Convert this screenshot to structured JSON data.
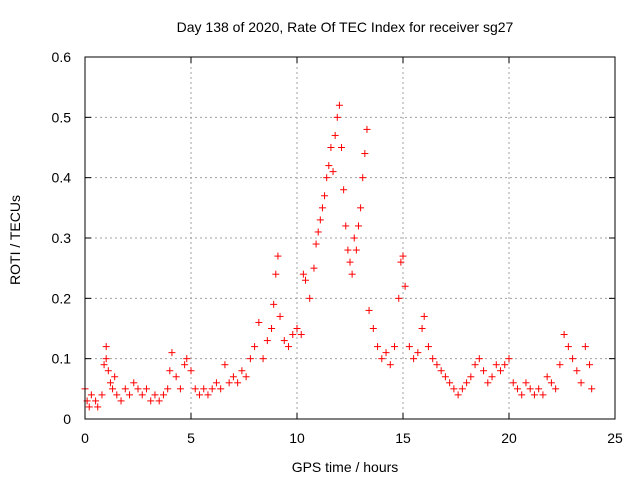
{
  "chart_data": {
    "type": "scatter",
    "title": "Day 138 of 2020, Rate Of TEC Index for receiver sg27",
    "xlabel": "GPS time / hours",
    "ylabel": "ROTI / TECUs",
    "xlim": [
      0,
      25
    ],
    "ylim": [
      0,
      0.6
    ],
    "xticks": [
      "0",
      "5",
      "10",
      "15",
      "20",
      "25"
    ],
    "yticks": [
      "0",
      "0.1",
      "0.2",
      "0.3",
      "0.4",
      "0.5",
      "0.6"
    ],
    "xtick_values": [
      0,
      5,
      10,
      15,
      20,
      25
    ],
    "ytick_values": [
      0,
      0.1,
      0.2,
      0.3,
      0.4,
      0.5,
      0.6
    ],
    "grid": true,
    "marker": "+",
    "color": "#ff0000",
    "series": [
      {
        "name": "ROTI",
        "description_note": "dense red plus markers spanning 0-24 h",
        "points": [
          [
            0.0,
            0.05
          ],
          [
            0.1,
            0.03
          ],
          [
            0.2,
            0.02
          ],
          [
            0.3,
            0.04
          ],
          [
            0.5,
            0.03
          ],
          [
            0.6,
            0.02
          ],
          [
            0.8,
            0.04
          ],
          [
            0.9,
            0.09
          ],
          [
            1.0,
            0.12
          ],
          [
            1.0,
            0.1
          ],
          [
            1.1,
            0.08
          ],
          [
            1.2,
            0.06
          ],
          [
            1.3,
            0.05
          ],
          [
            1.4,
            0.07
          ],
          [
            1.5,
            0.04
          ],
          [
            1.7,
            0.03
          ],
          [
            1.9,
            0.05
          ],
          [
            2.1,
            0.04
          ],
          [
            2.3,
            0.06
          ],
          [
            2.5,
            0.05
          ],
          [
            2.7,
            0.04
          ],
          [
            2.9,
            0.05
          ],
          [
            3.1,
            0.03
          ],
          [
            3.3,
            0.04
          ],
          [
            3.5,
            0.03
          ],
          [
            3.7,
            0.04
          ],
          [
            3.9,
            0.05
          ],
          [
            4.0,
            0.08
          ],
          [
            4.1,
            0.11
          ],
          [
            4.3,
            0.07
          ],
          [
            4.5,
            0.05
          ],
          [
            4.7,
            0.09
          ],
          [
            4.8,
            0.1
          ],
          [
            5.0,
            0.08
          ],
          [
            5.2,
            0.05
          ],
          [
            5.4,
            0.04
          ],
          [
            5.6,
            0.05
          ],
          [
            5.8,
            0.04
          ],
          [
            6.0,
            0.05
          ],
          [
            6.2,
            0.06
          ],
          [
            6.4,
            0.05
          ],
          [
            6.6,
            0.09
          ],
          [
            6.8,
            0.06
          ],
          [
            7.0,
            0.07
          ],
          [
            7.2,
            0.06
          ],
          [
            7.4,
            0.08
          ],
          [
            7.6,
            0.07
          ],
          [
            7.8,
            0.1
          ],
          [
            8.0,
            0.12
          ],
          [
            8.2,
            0.16
          ],
          [
            8.4,
            0.1
          ],
          [
            8.6,
            0.13
          ],
          [
            8.8,
            0.15
          ],
          [
            8.9,
            0.19
          ],
          [
            9.0,
            0.24
          ],
          [
            9.1,
            0.27
          ],
          [
            9.2,
            0.17
          ],
          [
            9.4,
            0.13
          ],
          [
            9.6,
            0.12
          ],
          [
            9.8,
            0.14
          ],
          [
            10.0,
            0.15
          ],
          [
            10.2,
            0.14
          ],
          [
            10.3,
            0.24
          ],
          [
            10.4,
            0.23
          ],
          [
            10.6,
            0.2
          ],
          [
            10.8,
            0.25
          ],
          [
            10.9,
            0.29
          ],
          [
            11.0,
            0.31
          ],
          [
            11.1,
            0.33
          ],
          [
            11.2,
            0.35
          ],
          [
            11.3,
            0.37
          ],
          [
            11.4,
            0.4
          ],
          [
            11.5,
            0.42
          ],
          [
            11.6,
            0.45
          ],
          [
            11.7,
            0.41
          ],
          [
            11.8,
            0.47
          ],
          [
            11.9,
            0.5
          ],
          [
            12.0,
            0.52
          ],
          [
            12.1,
            0.45
          ],
          [
            12.2,
            0.38
          ],
          [
            12.3,
            0.32
          ],
          [
            12.4,
            0.28
          ],
          [
            12.5,
            0.26
          ],
          [
            12.6,
            0.24
          ],
          [
            12.7,
            0.3
          ],
          [
            12.8,
            0.28
          ],
          [
            12.9,
            0.32
          ],
          [
            13.0,
            0.35
          ],
          [
            13.1,
            0.4
          ],
          [
            13.2,
            0.44
          ],
          [
            13.3,
            0.48
          ],
          [
            13.4,
            0.18
          ],
          [
            13.6,
            0.15
          ],
          [
            13.8,
            0.12
          ],
          [
            14.0,
            0.1
          ],
          [
            14.2,
            0.11
          ],
          [
            14.4,
            0.09
          ],
          [
            14.6,
            0.12
          ],
          [
            14.8,
            0.2
          ],
          [
            14.9,
            0.26
          ],
          [
            15.0,
            0.27
          ],
          [
            15.1,
            0.22
          ],
          [
            15.3,
            0.12
          ],
          [
            15.5,
            0.1
          ],
          [
            15.7,
            0.11
          ],
          [
            15.9,
            0.15
          ],
          [
            16.0,
            0.17
          ],
          [
            16.2,
            0.12
          ],
          [
            16.4,
            0.1
          ],
          [
            16.6,
            0.09
          ],
          [
            16.8,
            0.08
          ],
          [
            17.0,
            0.07
          ],
          [
            17.2,
            0.06
          ],
          [
            17.4,
            0.05
          ],
          [
            17.6,
            0.04
          ],
          [
            17.8,
            0.05
          ],
          [
            18.0,
            0.06
          ],
          [
            18.2,
            0.07
          ],
          [
            18.4,
            0.09
          ],
          [
            18.6,
            0.1
          ],
          [
            18.8,
            0.08
          ],
          [
            19.0,
            0.06
          ],
          [
            19.2,
            0.07
          ],
          [
            19.4,
            0.09
          ],
          [
            19.6,
            0.08
          ],
          [
            19.8,
            0.09
          ],
          [
            20.0,
            0.1
          ],
          [
            20.2,
            0.06
          ],
          [
            20.4,
            0.05
          ],
          [
            20.6,
            0.04
          ],
          [
            20.8,
            0.06
          ],
          [
            21.0,
            0.05
          ],
          [
            21.2,
            0.04
          ],
          [
            21.4,
            0.05
          ],
          [
            21.6,
            0.04
          ],
          [
            21.8,
            0.07
          ],
          [
            22.0,
            0.06
          ],
          [
            22.2,
            0.05
          ],
          [
            22.4,
            0.09
          ],
          [
            22.6,
            0.14
          ],
          [
            22.8,
            0.12
          ],
          [
            23.0,
            0.1
          ],
          [
            23.2,
            0.08
          ],
          [
            23.4,
            0.06
          ],
          [
            23.6,
            0.12
          ],
          [
            23.8,
            0.09
          ],
          [
            23.9,
            0.05
          ]
        ]
      }
    ]
  }
}
